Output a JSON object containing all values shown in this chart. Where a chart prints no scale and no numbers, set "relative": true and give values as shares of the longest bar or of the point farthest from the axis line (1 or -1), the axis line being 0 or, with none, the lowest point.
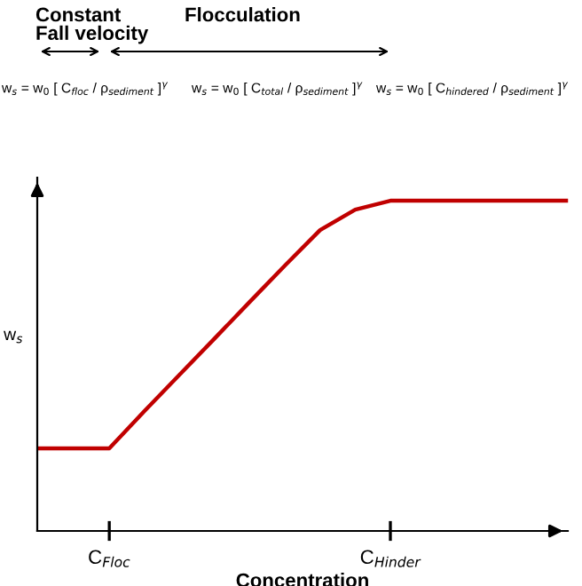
{
  "chart_data": {
    "type": "line",
    "relative": true,
    "xlabel": "Concentration",
    "ylabel": "w$_{s}$",
    "categories": [
      null,
      null,
      "C$_{Floc}$",
      null,
      null,
      null,
      null,
      null,
      null,
      null,
      "C$_{Hinder}$",
      null,
      null,
      null,
      null,
      null
    ],
    "series": [
      {
        "color": "#c00000",
        "values": [
          0.25,
          0.25,
          0.25,
          0.363,
          0.473,
          0.583,
          0.694,
          0.804,
          0.911,
          0.973,
          1,
          1,
          1,
          1,
          1,
          1
        ]
      }
    ],
    "annotations": [
      "Constant\nFall velocity",
      "Flocculation",
      "w$_{s}$ = w$_{0}$ [ C$_{floc}$ / ρ$_{sediment}$ ]$^{γ}$",
      "w$_{s}$ = w$_{0}$ [ C$_{total}$ / ρ$_{sediment}$ ]$^{γ}$",
      "w$_{s}$ = w$_{0}$ [ C$_{hindered}$ / ρ$_{sediment}$ ]$^{γ}$"
    ],
    "grid": false,
    "legend": false,
    "marker": "none",
    "line_style": "solid"
  }
}
